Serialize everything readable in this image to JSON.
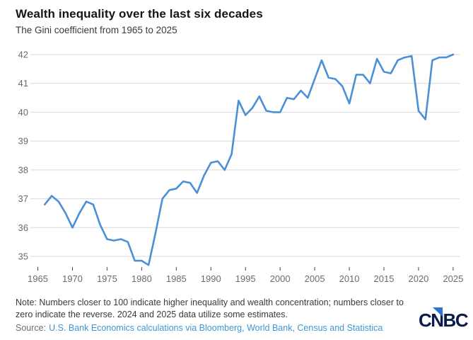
{
  "chart_data": {
    "type": "line",
    "title": "Wealth inequality over the last six decades",
    "subtitle": "The Gini coefficient from 1965 to 2025",
    "xlabel": "",
    "ylabel": "",
    "x_ticks": [
      1965,
      1970,
      1975,
      1980,
      1985,
      1990,
      1995,
      2000,
      2005,
      2010,
      2015,
      2020,
      2025
    ],
    "y_ticks": [
      35,
      36,
      37,
      38,
      39,
      40,
      41,
      42
    ],
    "xlim": [
      1964,
      2026
    ],
    "ylim": [
      34.5,
      42.4
    ],
    "grid": "horizontal",
    "legend": "none",
    "series": [
      {
        "name": "Gini coefficient",
        "x": [
          1966,
          1967,
          1968,
          1969,
          1970,
          1971,
          1972,
          1973,
          1974,
          1975,
          1976,
          1977,
          1978,
          1979,
          1980,
          1981,
          1982,
          1983,
          1984,
          1985,
          1986,
          1987,
          1988,
          1989,
          1990,
          1991,
          1992,
          1993,
          1994,
          1995,
          1996,
          1997,
          1998,
          1999,
          2000,
          2001,
          2002,
          2003,
          2004,
          2005,
          2006,
          2007,
          2008,
          2009,
          2010,
          2011,
          2012,
          2013,
          2014,
          2015,
          2016,
          2017,
          2018,
          2019,
          2020,
          2021,
          2022,
          2023,
          2024,
          2025
        ],
        "values": [
          36.8,
          37.1,
          36.9,
          36.5,
          36.0,
          36.5,
          36.9,
          36.8,
          36.1,
          35.6,
          35.55,
          35.6,
          35.5,
          34.85,
          34.85,
          34.7,
          35.8,
          37.0,
          37.3,
          37.35,
          37.6,
          37.55,
          37.2,
          37.8,
          38.25,
          38.3,
          38.0,
          38.55,
          40.4,
          39.9,
          40.15,
          40.55,
          40.05,
          40.0,
          40.0,
          40.5,
          40.45,
          40.75,
          40.5,
          41.15,
          41.8,
          41.2,
          41.15,
          40.9,
          40.3,
          41.3,
          41.3,
          41.0,
          41.85,
          41.4,
          41.35,
          41.8,
          41.9,
          41.95,
          40.05,
          39.75,
          41.8,
          41.9,
          41.9,
          42.0
        ]
      }
    ]
  },
  "footer": {
    "note": "Note: Numbers closer to 100 indicate higher inequality and wealth concentration; numbers closer to zero indicate the reverse. 2024 and 2025 data utilize some estimates.",
    "source_label": "Source:",
    "source_text": "U.S. Bank Economics calculations via Bloomberg, World Bank, Census and Statistica",
    "logo_text": "CNBC"
  },
  "colors": {
    "line": "#4a90d6",
    "grid": "#d9d9d9",
    "axis_text": "#6b6b6b",
    "tick": "#444444",
    "title": "#151515",
    "body_text": "#3a3a3a",
    "muted_text": "#6e6e6e",
    "link": "#3e97d4",
    "logo_navy": "#0a1b4c",
    "logo_blue": "#2f72d2"
  }
}
